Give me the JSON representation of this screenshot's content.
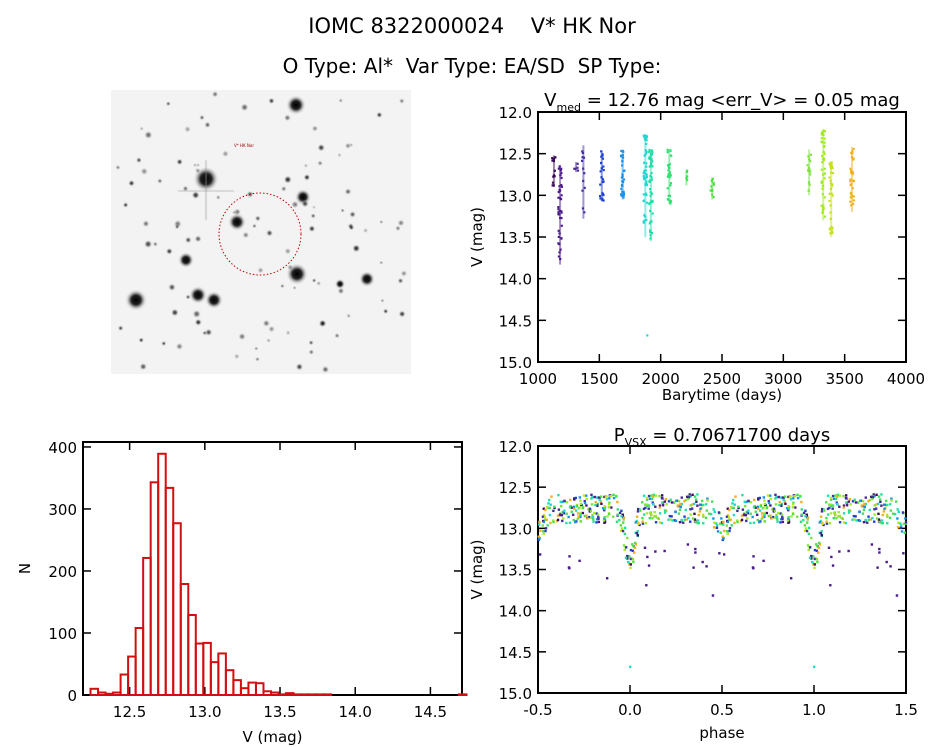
{
  "header": {
    "title": "IOMC 8322000024    V* HK Nor",
    "subtitle": "O Type: Al*  Var Type: EA/SD  SP Type:"
  },
  "sky_image": {
    "target_label": "V* HK Nor",
    "marker_color": "#cc0000"
  },
  "colors": {
    "histogram": "#d01010",
    "axes": "#000000"
  },
  "chart_data": [
    {
      "type": "scatter",
      "name": "light-curve-vs-time",
      "title_main": "V",
      "title_sub": "med",
      "title_rest": " = 12.76 mag <err_V> = 0.05 mag",
      "xlabel": "Barytime (days)",
      "ylabel": "V (mag)",
      "xlim": [
        1000,
        4000
      ],
      "ylim": [
        15.0,
        12.0
      ],
      "xticks": [
        "1000",
        "1500",
        "2000",
        "2500",
        "3000",
        "3500",
        "4000"
      ],
      "yticks": [
        "12.0",
        "12.5",
        "13.0",
        "13.5",
        "14.0",
        "14.5",
        "15.0"
      ],
      "clusters": [
        {
          "t": 1130,
          "min": 12.52,
          "max": 12.9,
          "color": "#3a0a5a",
          "n": 14
        },
        {
          "t": 1180,
          "min": 12.65,
          "max": 13.83,
          "color": "#4b1a8a",
          "n": 40
        },
        {
          "t": 1310,
          "min": 12.6,
          "max": 12.72,
          "color": "#48289a",
          "n": 5
        },
        {
          "t": 1370,
          "min": 12.4,
          "max": 13.28,
          "color": "#3f30a8",
          "n": 12
        },
        {
          "t": 1520,
          "min": 12.47,
          "max": 13.07,
          "color": "#2040d0",
          "n": 25
        },
        {
          "t": 1690,
          "min": 12.45,
          "max": 13.05,
          "color": "#1a90e8",
          "n": 30
        },
        {
          "t": 1875,
          "min": 12.28,
          "max": 13.5,
          "color": "#20d8d0",
          "n": 50
        },
        {
          "t": 1920,
          "min": 12.45,
          "max": 13.55,
          "color": "#20e0a8",
          "n": 50
        },
        {
          "t": 2070,
          "min": 12.45,
          "max": 13.1,
          "color": "#30e070",
          "n": 30
        },
        {
          "t": 2210,
          "min": 12.7,
          "max": 12.88,
          "color": "#40e050",
          "n": 5
        },
        {
          "t": 2420,
          "min": 12.8,
          "max": 13.05,
          "color": "#50e040",
          "n": 12
        },
        {
          "t": 3210,
          "min": 12.45,
          "max": 13.0,
          "color": "#80e040",
          "n": 14
        },
        {
          "t": 3325,
          "min": 12.22,
          "max": 13.3,
          "color": "#a0ec20",
          "n": 45
        },
        {
          "t": 3390,
          "min": 12.6,
          "max": 13.5,
          "color": "#c8e020",
          "n": 35
        },
        {
          "t": 3560,
          "min": 12.42,
          "max": 13.2,
          "color": "#f0b020",
          "n": 30
        }
      ],
      "outliers": [
        {
          "t": 1890,
          "v": 14.68,
          "color": "#20d8d0"
        }
      ]
    },
    {
      "type": "bar",
      "name": "magnitude-histogram",
      "xlabel": "V (mag)",
      "ylabel": "N",
      "xlim": [
        12.19,
        14.71
      ],
      "ylim": [
        0,
        408
      ],
      "xticks": [
        "12.5",
        "13.0",
        "13.5",
        "14.0",
        "14.5"
      ],
      "yticks": [
        "0",
        "100",
        "200",
        "300",
        "400"
      ],
      "bin_start": 12.24,
      "bin_width": 0.05,
      "values": [
        10,
        4,
        2,
        4,
        33,
        62,
        108,
        221,
        343,
        389,
        334,
        277,
        179,
        129,
        83,
        84,
        53,
        67,
        40,
        24,
        11,
        20,
        19,
        6,
        4,
        1,
        3,
        1,
        1,
        1,
        1,
        1,
        0,
        0,
        0,
        0,
        0,
        0,
        0,
        0,
        0,
        0,
        0,
        0,
        0,
        0,
        0,
        0,
        0,
        1
      ]
    },
    {
      "type": "scatter",
      "name": "phased-light-curve",
      "title_main": "P",
      "title_sub": "VSX",
      "title_rest": " = 0.70671700 days",
      "xlabel": "phase",
      "ylabel": "V (mag)",
      "xlim": [
        -0.5,
        1.5
      ],
      "ylim": [
        15.0,
        12.0
      ],
      "xticks": [
        "-0.5",
        "0.0",
        "0.5",
        "1.0",
        "1.5"
      ],
      "yticks": [
        "12.0",
        "12.5",
        "13.0",
        "13.5",
        "14.0",
        "14.5",
        "15.0"
      ],
      "period_days": 0.706717,
      "median_mag": 12.76,
      "primary_eclipse_depth": 0.6,
      "secondary_eclipse_depth": 0.25,
      "outliers": [
        {
          "phase": 0.0,
          "v": 14.68,
          "color": "#20d8d0"
        }
      ]
    }
  ]
}
